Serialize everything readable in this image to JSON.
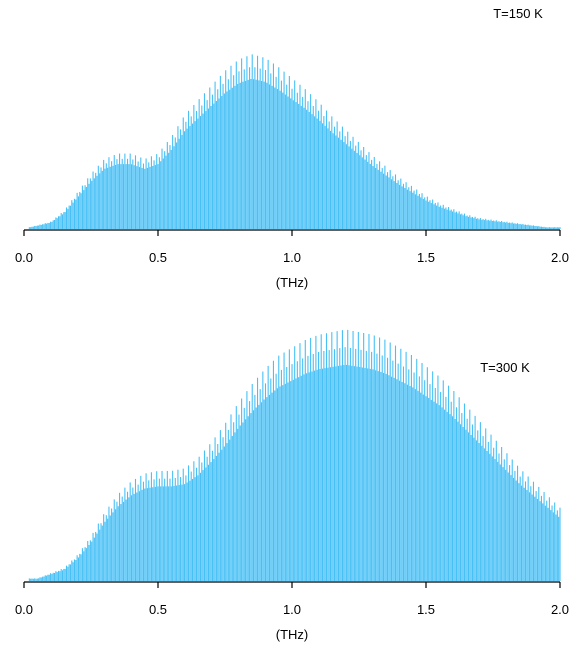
{
  "chart_data": [
    {
      "type": "line",
      "annotation": "T=150 K",
      "xlabel": "(THz)",
      "xlim": [
        0.0,
        2.0
      ],
      "x_ticks": [
        "0.0",
        "0.5",
        "1.0",
        "1.5",
        "2.0"
      ],
      "y_axis_shown": false,
      "grid": false,
      "color": "#47c0f5",
      "series": [
        {
          "x": [
            0.02,
            0.05,
            0.1,
            0.15,
            0.2,
            0.25,
            0.3,
            0.35,
            0.4,
            0.45,
            0.5,
            0.55,
            0.6,
            0.65,
            0.7,
            0.75,
            0.8,
            0.85,
            0.9,
            0.95,
            1.0,
            1.05,
            1.1,
            1.15,
            1.2,
            1.25,
            1.3,
            1.35,
            1.4,
            1.45,
            1.5,
            1.55,
            1.6,
            1.65,
            1.7,
            1.75,
            1.8,
            1.85,
            1.9,
            1.95,
            2.0
          ],
          "y": [
            0.01,
            0.02,
            0.04,
            0.1,
            0.2,
            0.3,
            0.38,
            0.41,
            0.41,
            0.38,
            0.41,
            0.5,
            0.62,
            0.7,
            0.78,
            0.86,
            0.92,
            0.95,
            0.93,
            0.88,
            0.82,
            0.76,
            0.69,
            0.61,
            0.54,
            0.47,
            0.4,
            0.34,
            0.28,
            0.23,
            0.18,
            0.14,
            0.11,
            0.08,
            0.06,
            0.05,
            0.04,
            0.03,
            0.02,
            0.01,
            0.01
          ]
        }
      ]
    },
    {
      "type": "line",
      "annotation": "T=300 K",
      "xlabel": "(THz)",
      "xlim": [
        0.0,
        2.0
      ],
      "x_ticks": [
        "0.0",
        "0.5",
        "1.0",
        "1.5",
        "2.0"
      ],
      "y_axis_shown": false,
      "grid": false,
      "color": "#47c0f5",
      "series": [
        {
          "x": [
            0.02,
            0.05,
            0.1,
            0.15,
            0.2,
            0.25,
            0.3,
            0.35,
            0.4,
            0.45,
            0.5,
            0.55,
            0.6,
            0.65,
            0.7,
            0.75,
            0.8,
            0.85,
            0.9,
            0.95,
            1.0,
            1.05,
            1.1,
            1.15,
            1.2,
            1.25,
            1.3,
            1.35,
            1.4,
            1.45,
            1.5,
            1.55,
            1.6,
            1.65,
            1.7,
            1.75,
            1.8,
            1.85,
            1.9,
            1.95,
            2.0
          ],
          "y": [
            0.01,
            0.01,
            0.03,
            0.05,
            0.1,
            0.17,
            0.26,
            0.33,
            0.38,
            0.41,
            0.42,
            0.42,
            0.43,
            0.47,
            0.53,
            0.6,
            0.68,
            0.75,
            0.81,
            0.86,
            0.89,
            0.92,
            0.94,
            0.95,
            0.96,
            0.95,
            0.94,
            0.92,
            0.89,
            0.86,
            0.82,
            0.78,
            0.73,
            0.67,
            0.61,
            0.55,
            0.49,
            0.43,
            0.38,
            0.33,
            0.28
          ]
        }
      ]
    }
  ]
}
